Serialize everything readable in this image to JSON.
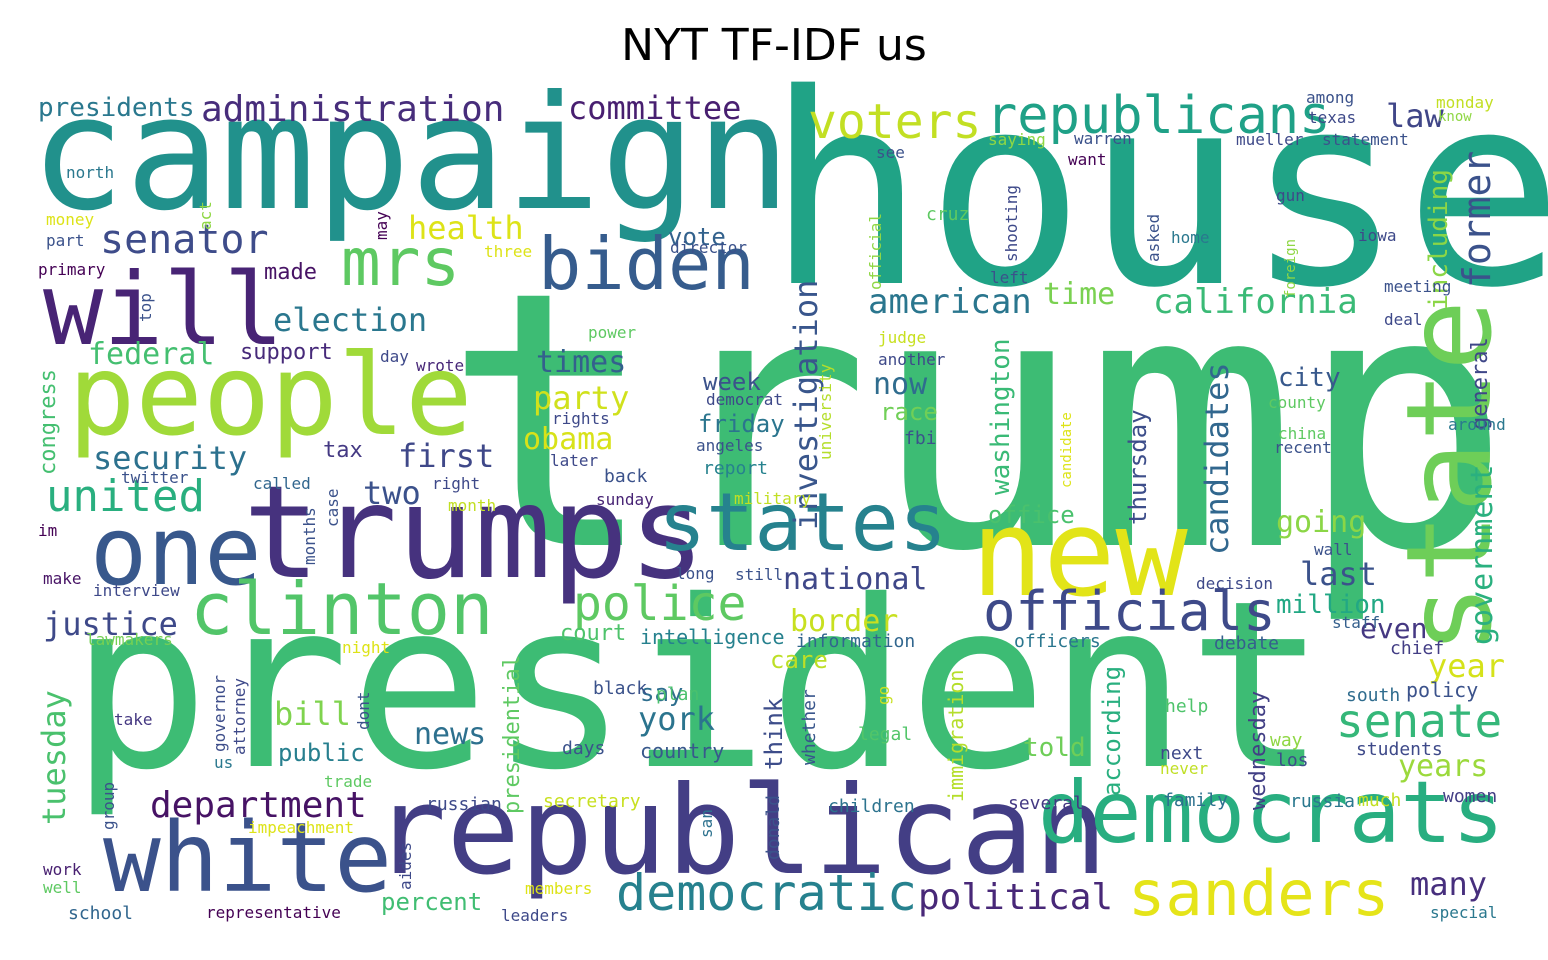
{
  "title": "NYT TF-IDF us",
  "words": [
    {
      "text": "trump",
      "color": "#3dbc74"
    },
    {
      "text": "house",
      "color": "#20a386"
    },
    {
      "text": "president",
      "color": "#3dbc74"
    },
    {
      "text": "campaign",
      "color": "#21918c"
    },
    {
      "text": "republican",
      "color": "#433e85"
    },
    {
      "text": "trumps",
      "color": "#46327e"
    },
    {
      "text": "people",
      "color": "#a0da39"
    },
    {
      "text": "new",
      "color": "#e2e418"
    },
    {
      "text": "state",
      "color": "#6ece58"
    },
    {
      "text": "will",
      "color": "#482475"
    },
    {
      "text": "one",
      "color": "#38588c"
    },
    {
      "text": "white",
      "color": "#3b528b"
    },
    {
      "text": "democrats",
      "color": "#28ae80"
    },
    {
      "text": "states",
      "color": "#26828e"
    },
    {
      "text": "clinton",
      "color": "#52c569"
    },
    {
      "text": "biden",
      "color": "#365c8d"
    },
    {
      "text": "mrs",
      "color": "#5ec962"
    },
    {
      "text": "sanders",
      "color": "#e5e419"
    },
    {
      "text": "republicans",
      "color": "#1fa187"
    },
    {
      "text": "officials",
      "color": "#3e4a89"
    },
    {
      "text": "democratic",
      "color": "#26818e"
    },
    {
      "text": "voters",
      "color": "#c2df23"
    },
    {
      "text": "senate",
      "color": "#35b779"
    },
    {
      "text": "police",
      "color": "#5ec962"
    },
    {
      "text": "united",
      "color": "#29af7f"
    },
    {
      "text": "senator",
      "color": "#3e4c8a"
    },
    {
      "text": "administration",
      "color": "#472d7b"
    },
    {
      "text": "committee",
      "color": "#481f70"
    },
    {
      "text": "investigation",
      "color": "#39568c"
    },
    {
      "text": "former",
      "color": "#3b528b"
    },
    {
      "text": "american",
      "color": "#2a768e"
    },
    {
      "text": "california",
      "color": "#3aba76"
    },
    {
      "text": "department",
      "color": "#471365"
    },
    {
      "text": "political",
      "color": "#482878"
    },
    {
      "text": "election",
      "color": "#2a778e"
    },
    {
      "text": "health",
      "color": "#dde318"
    },
    {
      "text": "law",
      "color": "#404688"
    },
    {
      "text": "candidates",
      "color": "#31678e"
    },
    {
      "text": "government",
      "color": "#2ab07f"
    },
    {
      "text": "federal",
      "color": "#44bf70"
    },
    {
      "text": "security",
      "color": "#2c718e"
    },
    {
      "text": "justice",
      "color": "#3e4989"
    },
    {
      "text": "presidents",
      "color": "#2a788e"
    },
    {
      "text": "national",
      "color": "#3f4788"
    },
    {
      "text": "tuesday",
      "color": "#4ac16d"
    },
    {
      "text": "york",
      "color": "#2b748e"
    },
    {
      "text": "including",
      "color": "#8bd646"
    },
    {
      "text": "time",
      "color": "#7ad151"
    },
    {
      "text": "party",
      "color": "#d0e11c"
    },
    {
      "text": "times",
      "color": "#34608d"
    },
    {
      "text": "now",
      "color": "#2f6c8e"
    },
    {
      "text": "first",
      "color": "#3f4889"
    },
    {
      "text": "two",
      "color": "#3b518b"
    },
    {
      "text": "obama",
      "color": "#d8e219"
    },
    {
      "text": "bill",
      "color": "#7fd34e"
    },
    {
      "text": "news",
      "color": "#2d708e"
    },
    {
      "text": "years",
      "color": "#9bd93c"
    },
    {
      "text": "last",
      "color": "#3b528b"
    },
    {
      "text": "going",
      "color": "#8bd646"
    },
    {
      "text": "million",
      "color": "#22a884"
    },
    {
      "text": "many",
      "color": "#472f7d"
    },
    {
      "text": "even",
      "color": "#453882"
    },
    {
      "text": "year",
      "color": "#d5e21a"
    },
    {
      "text": "border",
      "color": "#c8e020"
    },
    {
      "text": "court",
      "color": "#4ec36b"
    },
    {
      "text": "made",
      "color": "#471365"
    },
    {
      "text": "support",
      "color": "#472a7a"
    },
    {
      "text": "vote",
      "color": "#33628d"
    },
    {
      "text": "week",
      "color": "#3b528b"
    },
    {
      "text": "race",
      "color": "#70cf57"
    },
    {
      "text": "friday",
      "color": "#2b758e"
    },
    {
      "text": "city",
      "color": "#38598c"
    },
    {
      "text": "washington",
      "color": "#3aba76"
    },
    {
      "text": "thursday",
      "color": "#3d4e8a"
    },
    {
      "text": "office",
      "color": "#4ac16d"
    },
    {
      "text": "tax",
      "color": "#443983"
    },
    {
      "text": "congress",
      "color": "#44bf70"
    },
    {
      "text": "public",
      "color": "#277f8e"
    },
    {
      "text": "say",
      "color": "#2e6e8e"
    },
    {
      "text": "care",
      "color": "#bddf26"
    },
    {
      "text": "think",
      "color": "#3d4d8a"
    },
    {
      "text": "told",
      "color": "#6ece58"
    },
    {
      "text": "according",
      "color": "#29af7f"
    },
    {
      "text": "wednesday",
      "color": "#423f85"
    },
    {
      "text": "immigration",
      "color": "#b5de2b"
    },
    {
      "text": "presidential",
      "color": "#5ec962"
    },
    {
      "text": "percent",
      "color": "#40bd72"
    },
    {
      "text": "country",
      "color": "#38588c"
    },
    {
      "text": "general",
      "color": "#3f4788"
    },
    {
      "text": "intelligence",
      "color": "#26818e"
    },
    {
      "text": "information",
      "color": "#31668e"
    },
    {
      "text": "policy",
      "color": "#3b528b"
    },
    {
      "text": "staff",
      "color": "#35608d"
    },
    {
      "text": "chief",
      "color": "#433e85"
    },
    {
      "text": "officers",
      "color": "#2a768e"
    },
    {
      "text": "debate",
      "color": "#355f8d"
    },
    {
      "text": "students",
      "color": "#3e4989"
    },
    {
      "text": "los",
      "color": "#3d4d8a"
    },
    {
      "text": "way",
      "color": "#8fd744"
    },
    {
      "text": "help",
      "color": "#4ec36b"
    },
    {
      "text": "next",
      "color": "#3e4989"
    },
    {
      "text": "never",
      "color": "#c0df25"
    },
    {
      "text": "south",
      "color": "#2f6c8e"
    },
    {
      "text": "russia",
      "color": "#2a788e"
    },
    {
      "text": "much",
      "color": "#c2df23"
    },
    {
      "text": "women",
      "color": "#433e85"
    },
    {
      "text": "family",
      "color": "#2c718e"
    },
    {
      "text": "several",
      "color": "#443983"
    },
    {
      "text": "children",
      "color": "#2c738e"
    },
    {
      "text": "russian",
      "color": "#3e4a89"
    },
    {
      "text": "secretary",
      "color": "#c8e020"
    },
    {
      "text": "days",
      "color": "#3b528b"
    },
    {
      "text": "black",
      "color": "#3b528b"
    },
    {
      "text": "plan",
      "color": "#4ac16d"
    },
    {
      "text": "legal",
      "color": "#52c569"
    },
    {
      "text": "whether",
      "color": "#39568c"
    },
    {
      "text": "go",
      "color": "#c8e020"
    },
    {
      "text": "donald",
      "color": "#3b528b"
    },
    {
      "text": "san",
      "color": "#2c718e"
    },
    {
      "text": "members",
      "color": "#dde318"
    },
    {
      "text": "leaders",
      "color": "#3e4989"
    },
    {
      "text": "representative",
      "color": "#440154"
    },
    {
      "text": "school",
      "color": "#31668e"
    },
    {
      "text": "well",
      "color": "#5ec962"
    },
    {
      "text": "work",
      "color": "#482071"
    },
    {
      "text": "group",
      "color": "#3b528b"
    },
    {
      "text": "aides",
      "color": "#3e4989"
    },
    {
      "text": "impeachment",
      "color": "#dde318"
    },
    {
      "text": "trade",
      "color": "#5ec962"
    },
    {
      "text": "attorney",
      "color": "#3e4989"
    },
    {
      "text": "governor",
      "color": "#3d4d8a"
    },
    {
      "text": "us",
      "color": "#2a788e"
    },
    {
      "text": "take",
      "color": "#453882"
    },
    {
      "text": "dont",
      "color": "#3b528b"
    },
    {
      "text": "night",
      "color": "#dde318"
    },
    {
      "text": "lawmakers",
      "color": "#75d054"
    },
    {
      "text": "interview",
      "color": "#3e4989"
    },
    {
      "text": "make",
      "color": "#471365"
    },
    {
      "text": "long",
      "color": "#3b528b"
    },
    {
      "text": "still",
      "color": "#3b528b"
    },
    {
      "text": "im",
      "color": "#440154"
    },
    {
      "text": "months",
      "color": "#3b528b"
    },
    {
      "text": "case",
      "color": "#3b528b"
    },
    {
      "text": "called",
      "color": "#31668e"
    },
    {
      "text": "right",
      "color": "#3e4989"
    },
    {
      "text": "month",
      "color": "#c2df23"
    },
    {
      "text": "twitter",
      "color": "#3b528b"
    },
    {
      "text": "later",
      "color": "#3e4989"
    },
    {
      "text": "sunday",
      "color": "#482475"
    },
    {
      "text": "back",
      "color": "#3b528b"
    },
    {
      "text": "report",
      "color": "#26828e"
    },
    {
      "text": "military",
      "color": "#c2df23"
    },
    {
      "text": "angeles",
      "color": "#3b528b"
    },
    {
      "text": "democrat",
      "color": "#3e4989"
    },
    {
      "text": "rights",
      "color": "#3e4989"
    },
    {
      "text": "wrote",
      "color": "#482878"
    },
    {
      "text": "day",
      "color": "#3e4989"
    },
    {
      "text": "power",
      "color": "#5ec962"
    },
    {
      "text": "university",
      "color": "#b5de2b"
    },
    {
      "text": "fbi",
      "color": "#3b528b"
    },
    {
      "text": "another",
      "color": "#3e4989"
    },
    {
      "text": "judge",
      "color": "#c8e020"
    },
    {
      "text": "candidate",
      "color": "#dde318"
    },
    {
      "text": "china",
      "color": "#5ec962"
    },
    {
      "text": "recent",
      "color": "#3b528b"
    },
    {
      "text": "county",
      "color": "#5ec962"
    },
    {
      "text": "around",
      "color": "#2a788e"
    },
    {
      "text": "decision",
      "color": "#3e4989"
    },
    {
      "text": "wall",
      "color": "#3b528b"
    },
    {
      "text": "deal",
      "color": "#3e4989"
    },
    {
      "text": "meeting",
      "color": "#3b528b"
    },
    {
      "text": "iowa",
      "color": "#3e4989"
    },
    {
      "text": "foreign",
      "color": "#8fd744"
    },
    {
      "text": "gun",
      "color": "#3e4989"
    },
    {
      "text": "home",
      "color": "#2a788e"
    },
    {
      "text": "asked",
      "color": "#3b528b"
    },
    {
      "text": "shooting",
      "color": "#3e4989"
    },
    {
      "text": "left",
      "color": "#3b528b"
    },
    {
      "text": "want",
      "color": "#440154"
    },
    {
      "text": "cruz",
      "color": "#5ec962"
    },
    {
      "text": "official",
      "color": "#8fd744"
    },
    {
      "text": "see",
      "color": "#3b528b"
    },
    {
      "text": "saying",
      "color": "#8fd744"
    },
    {
      "text": "warren",
      "color": "#3b528b"
    },
    {
      "text": "mueller",
      "color": "#3e4989"
    },
    {
      "text": "statement",
      "color": "#3b528b"
    },
    {
      "text": "among",
      "color": "#3b528b"
    },
    {
      "text": "texas",
      "color": "#3e4989"
    },
    {
      "text": "monday",
      "color": "#c2df23"
    },
    {
      "text": "know",
      "color": "#8fd744"
    },
    {
      "text": "director",
      "color": "#3b528b"
    },
    {
      "text": "three",
      "color": "#dde318"
    },
    {
      "text": "may",
      "color": "#440154"
    },
    {
      "text": "act",
      "color": "#8fd744"
    },
    {
      "text": "north",
      "color": "#2a788e"
    },
    {
      "text": "money",
      "color": "#dde318"
    },
    {
      "text": "part",
      "color": "#3b528b"
    },
    {
      "text": "primary",
      "color": "#440154"
    },
    {
      "text": "top",
      "color": "#3b528b"
    },
    {
      "text": "special",
      "color": "#2a788e"
    }
  ]
}
